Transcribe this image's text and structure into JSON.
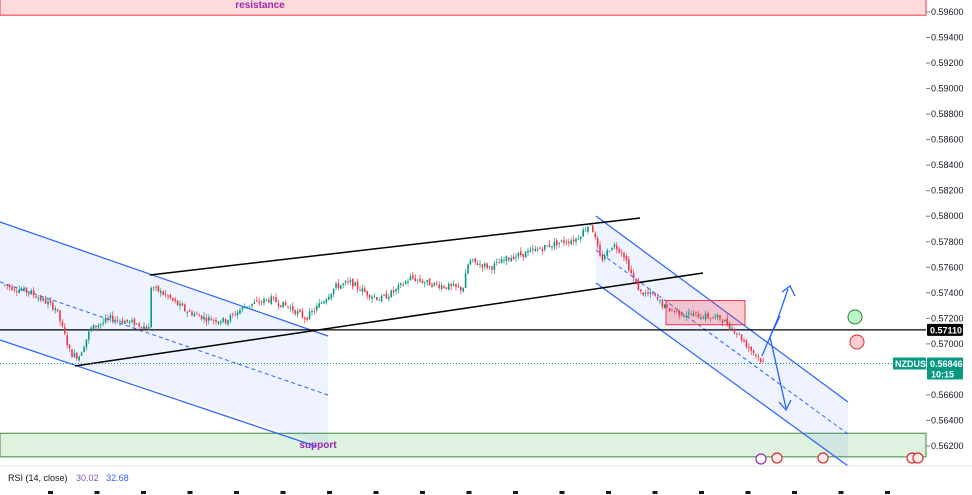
{
  "chart_data": {
    "type": "candlestick",
    "symbol": "NZDUSD",
    "y_axis": {
      "range": [
        0.5608,
        0.5975
      ],
      "ticks": [
        "0.59600",
        "0.59400",
        "0.59200",
        "0.59000",
        "0.58800",
        "0.58600",
        "0.58400",
        "0.58200",
        "0.58000",
        "0.57800",
        "0.57600",
        "0.57400",
        "0.57200",
        "0.57000",
        "0.56800",
        "0.56600",
        "0.56400",
        "0.56200"
      ],
      "position": "right",
      "grid": false
    },
    "price_tags": {
      "level": {
        "value": "0.57110",
        "price": 0.5711,
        "color": "#000000"
      },
      "current": {
        "symbol": "NZDUSD",
        "value": "0.56846",
        "price": 0.56846,
        "timer": "10:15",
        "color": "#089981"
      }
    },
    "zones": {
      "resistance": {
        "label": "resistance",
        "top": 0.5975,
        "bottom": 0.59575,
        "color": "#f23645"
      },
      "support": {
        "label": "support",
        "top": 0.563,
        "bottom": 0.56115,
        "color": "#4caf50"
      },
      "red_box": {
        "top": 0.5734,
        "bottom": 0.5715,
        "color": "#f23645"
      }
    },
    "colors": {
      "up": "#089981",
      "down": "#f23645",
      "channel": "#2962ff",
      "line": "#000000"
    },
    "indicator": {
      "name": "RSI (14, close)",
      "values": [
        "30.02",
        "32.68"
      ],
      "colors": [
        "#7e57c2",
        "#2962ff"
      ]
    },
    "candles_estimated": true
  }
}
